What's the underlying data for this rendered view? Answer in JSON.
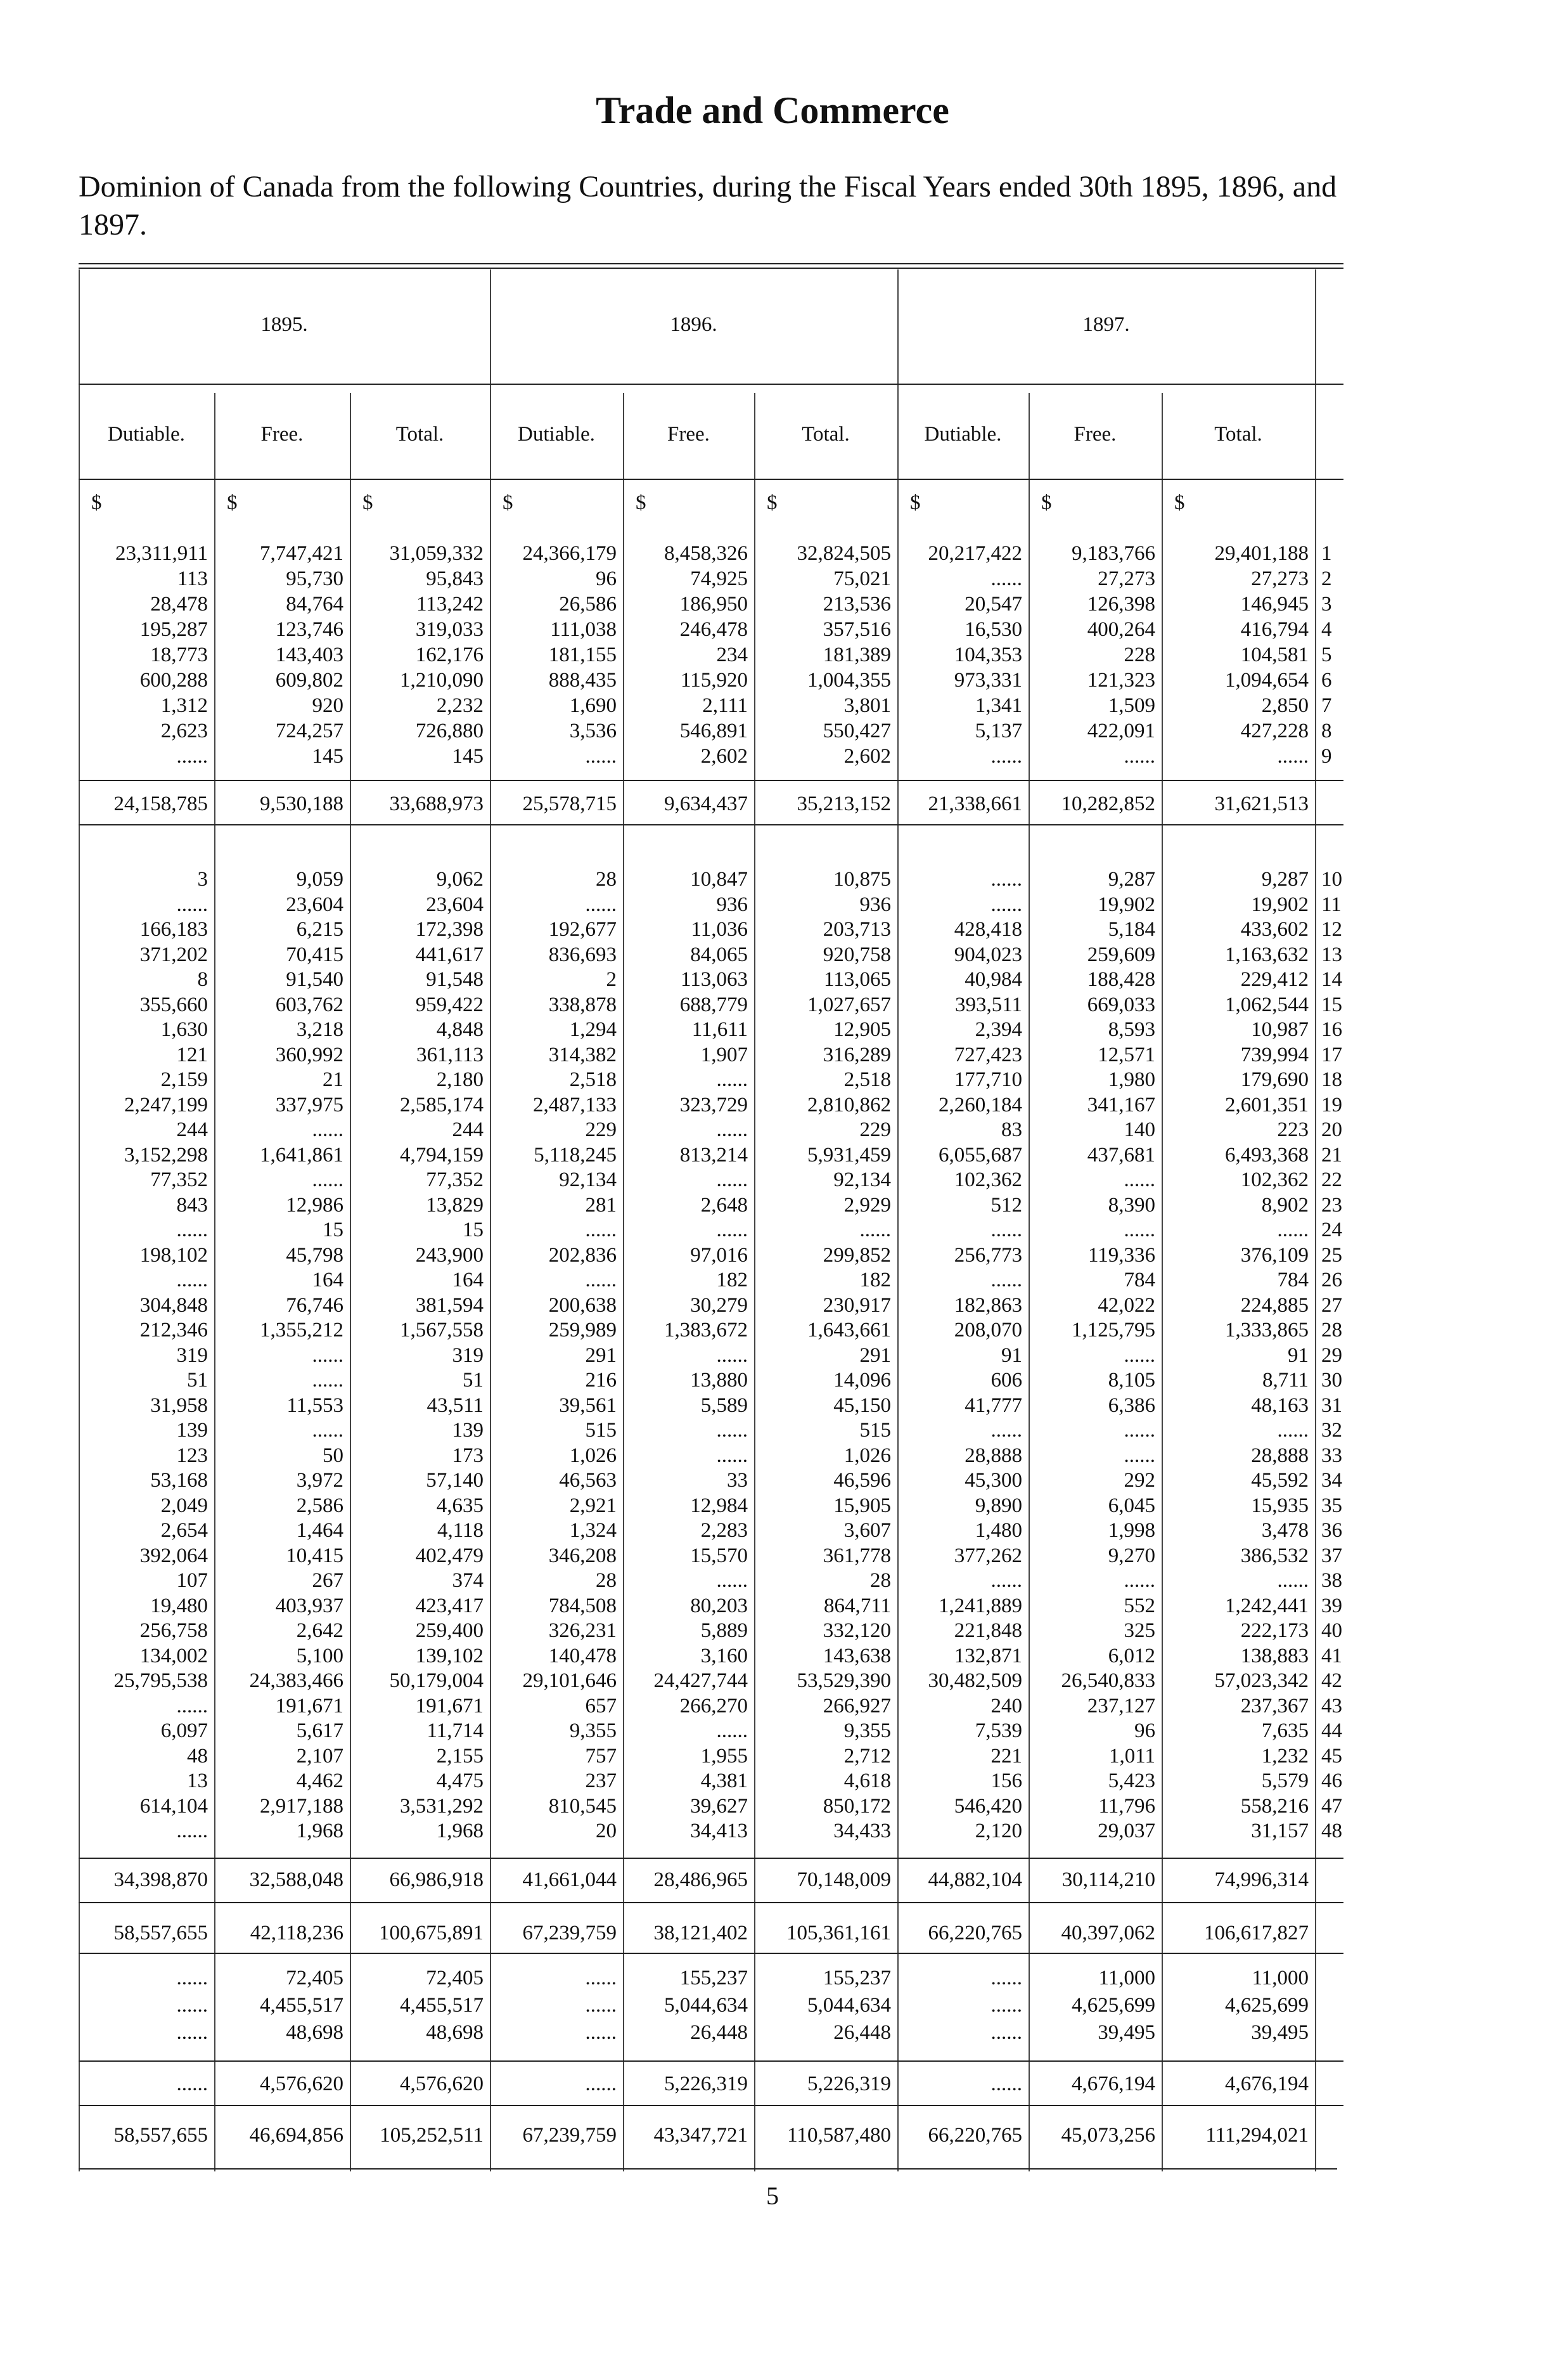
{
  "header": {
    "title": "Trade and Commerce",
    "intro": "Dominion of Canada from the following Countries, during the Fiscal Years ended 30th 1895, 1896, and 1897."
  },
  "table": {
    "years": [
      "1895.",
      "1896.",
      "1897."
    ],
    "columns": [
      "Dutiable.",
      "Free.",
      "Total.",
      "Dutiable.",
      "Free.",
      "Total.",
      "Dutiable.",
      "Free.",
      "Total."
    ],
    "units": [
      "$",
      "$",
      "$",
      "$",
      "$",
      "$",
      "$",
      "$",
      "$"
    ],
    "section_1": {
      "rows": [
        [
          "23,311,911",
          "7,747,421",
          "31,059,332",
          "24,366,179",
          "8,458,326",
          "32,824,505",
          "20,217,422",
          "9,183,766",
          "29,401,188",
          "1"
        ],
        [
          "113",
          "95,730",
          "95,843",
          "96",
          "74,925",
          "75,021",
          "......",
          "27,273",
          "27,273",
          "2"
        ],
        [
          "28,478",
          "84,764",
          "113,242",
          "26,586",
          "186,950",
          "213,536",
          "20,547",
          "126,398",
          "146,945",
          "3"
        ],
        [
          "195,287",
          "123,746",
          "319,033",
          "111,038",
          "246,478",
          "357,516",
          "16,530",
          "400,264",
          "416,794",
          "4"
        ],
        [
          "18,773",
          "143,403",
          "162,176",
          "181,155",
          "234",
          "181,389",
          "104,353",
          "228",
          "104,581",
          "5"
        ],
        [
          "600,288",
          "609,802",
          "1,210,090",
          "888,435",
          "115,920",
          "1,004,355",
          "973,331",
          "121,323",
          "1,094,654",
          "6"
        ],
        [
          "1,312",
          "920",
          "2,232",
          "1,690",
          "2,111",
          "3,801",
          "1,341",
          "1,509",
          "2,850",
          "7"
        ],
        [
          "2,623",
          "724,257",
          "726,880",
          "3,536",
          "546,891",
          "550,427",
          "5,137",
          "422,091",
          "427,228",
          "8"
        ],
        [
          "......",
          "145",
          "145",
          "......",
          "2,602",
          "2,602",
          "......",
          "......",
          "......",
          "9"
        ]
      ],
      "total": [
        "24,158,785",
        "9,530,188",
        "33,688,973",
        "25,578,715",
        "9,634,437",
        "35,213,152",
        "21,338,661",
        "10,282,852",
        "31,621,513"
      ]
    },
    "section_2": {
      "rows": [
        [
          "3",
          "9,059",
          "9,062",
          "28",
          "10,847",
          "10,875",
          "......",
          "9,287",
          "9,287",
          "10"
        ],
        [
          "......",
          "23,604",
          "23,604",
          "......",
          "936",
          "936",
          "......",
          "19,902",
          "19,902",
          "11"
        ],
        [
          "166,183",
          "6,215",
          "172,398",
          "192,677",
          "11,036",
          "203,713",
          "428,418",
          "5,184",
          "433,602",
          "12"
        ],
        [
          "371,202",
          "70,415",
          "441,617",
          "836,693",
          "84,065",
          "920,758",
          "904,023",
          "259,609",
          "1,163,632",
          "13"
        ],
        [
          "8",
          "91,540",
          "91,548",
          "2",
          "113,063",
          "113,065",
          "40,984",
          "188,428",
          "229,412",
          "14"
        ],
        [
          "355,660",
          "603,762",
          "959,422",
          "338,878",
          "688,779",
          "1,027,657",
          "393,511",
          "669,033",
          "1,062,544",
          "15"
        ],
        [
          "1,630",
          "3,218",
          "4,848",
          "1,294",
          "11,611",
          "12,905",
          "2,394",
          "8,593",
          "10,987",
          "16"
        ],
        [
          "121",
          "360,992",
          "361,113",
          "314,382",
          "1,907",
          "316,289",
          "727,423",
          "12,571",
          "739,994",
          "17"
        ],
        [
          "2,159",
          "21",
          "2,180",
          "2,518",
          "......",
          "2,518",
          "177,710",
          "1,980",
          "179,690",
          "18"
        ],
        [
          "2,247,199",
          "337,975",
          "2,585,174",
          "2,487,133",
          "323,729",
          "2,810,862",
          "2,260,184",
          "341,167",
          "2,601,351",
          "19"
        ],
        [
          "244",
          "......",
          "244",
          "229",
          "......",
          "229",
          "83",
          "140",
          "223",
          "20"
        ],
        [
          "3,152,298",
          "1,641,861",
          "4,794,159",
          "5,118,245",
          "813,214",
          "5,931,459",
          "6,055,687",
          "437,681",
          "6,493,368",
          "21"
        ],
        [
          "77,352",
          "......",
          "77,352",
          "92,134",
          "......",
          "92,134",
          "102,362",
          "......",
          "102,362",
          "22"
        ],
        [
          "843",
          "12,986",
          "13,829",
          "281",
          "2,648",
          "2,929",
          "512",
          "8,390",
          "8,902",
          "23"
        ],
        [
          "......",
          "15",
          "15",
          "......",
          "......",
          "......",
          "......",
          "......",
          "......",
          "24"
        ],
        [
          "198,102",
          "45,798",
          "243,900",
          "202,836",
          "97,016",
          "299,852",
          "256,773",
          "119,336",
          "376,109",
          "25"
        ],
        [
          "......",
          "164",
          "164",
          "......",
          "182",
          "182",
          "......",
          "784",
          "784",
          "26"
        ],
        [
          "304,848",
          "76,746",
          "381,594",
          "200,638",
          "30,279",
          "230,917",
          "182,863",
          "42,022",
          "224,885",
          "27"
        ],
        [
          "212,346",
          "1,355,212",
          "1,567,558",
          "259,989",
          "1,383,672",
          "1,643,661",
          "208,070",
          "1,125,795",
          "1,333,865",
          "28"
        ],
        [
          "319",
          "......",
          "319",
          "291",
          "......",
          "291",
          "91",
          "......",
          "91",
          "29"
        ],
        [
          "51",
          "......",
          "51",
          "216",
          "13,880",
          "14,096",
          "606",
          "8,105",
          "8,711",
          "30"
        ],
        [
          "31,958",
          "11,553",
          "43,511",
          "39,561",
          "5,589",
          "45,150",
          "41,777",
          "6,386",
          "48,163",
          "31"
        ],
        [
          "139",
          "......",
          "139",
          "515",
          "......",
          "515",
          "......",
          "......",
          "......",
          "32"
        ],
        [
          "123",
          "50",
          "173",
          "1,026",
          "......",
          "1,026",
          "28,888",
          "......",
          "28,888",
          "33"
        ],
        [
          "53,168",
          "3,972",
          "57,140",
          "46,563",
          "33",
          "46,596",
          "45,300",
          "292",
          "45,592",
          "34"
        ],
        [
          "2,049",
          "2,586",
          "4,635",
          "2,921",
          "12,984",
          "15,905",
          "9,890",
          "6,045",
          "15,935",
          "35"
        ],
        [
          "2,654",
          "1,464",
          "4,118",
          "1,324",
          "2,283",
          "3,607",
          "1,480",
          "1,998",
          "3,478",
          "36"
        ],
        [
          "392,064",
          "10,415",
          "402,479",
          "346,208",
          "15,570",
          "361,778",
          "377,262",
          "9,270",
          "386,532",
          "37"
        ],
        [
          "107",
          "267",
          "374",
          "28",
          "......",
          "28",
          "......",
          "......",
          "......",
          "38"
        ],
        [
          "19,480",
          "403,937",
          "423,417",
          "784,508",
          "80,203",
          "864,711",
          "1,241,889",
          "552",
          "1,242,441",
          "39"
        ],
        [
          "256,758",
          "2,642",
          "259,400",
          "326,231",
          "5,889",
          "332,120",
          "221,848",
          "325",
          "222,173",
          "40"
        ],
        [
          "134,002",
          "5,100",
          "139,102",
          "140,478",
          "3,160",
          "143,638",
          "132,871",
          "6,012",
          "138,883",
          "41"
        ],
        [
          "25,795,538",
          "24,383,466",
          "50,179,004",
          "29,101,646",
          "24,427,744",
          "53,529,390",
          "30,482,509",
          "26,540,833",
          "57,023,342",
          "42"
        ],
        [
          "......",
          "191,671",
          "191,671",
          "657",
          "266,270",
          "266,927",
          "240",
          "237,127",
          "237,367",
          "43"
        ],
        [
          "6,097",
          "5,617",
          "11,714",
          "9,355",
          "......",
          "9,355",
          "7,539",
          "96",
          "7,635",
          "44"
        ],
        [
          "48",
          "2,107",
          "2,155",
          "757",
          "1,955",
          "2,712",
          "221",
          "1,011",
          "1,232",
          "45"
        ],
        [
          "13",
          "4,462",
          "4,475",
          "237",
          "4,381",
          "4,618",
          "156",
          "5,423",
          "5,579",
          "46"
        ],
        [
          "614,104",
          "2,917,188",
          "3,531,292",
          "810,545",
          "39,627",
          "850,172",
          "546,420",
          "11,796",
          "558,216",
          "47"
        ],
        [
          "......",
          "1,968",
          "1,968",
          "20",
          "34,413",
          "34,433",
          "2,120",
          "29,037",
          "31,157",
          "48"
        ]
      ],
      "total": [
        "34,398,870",
        "32,588,048",
        "66,986,918",
        "41,661,044",
        "28,486,965",
        "70,148,009",
        "44,882,104",
        "30,114,210",
        "74,996,314"
      ]
    },
    "grand_total": [
      "58,557,655",
      "42,118,236",
      "100,675,891",
      "67,239,759",
      "38,121,402",
      "105,361,161",
      "66,220,765",
      "40,397,062",
      "106,617,827"
    ],
    "section_3": {
      "rows": [
        [
          "......",
          "72,405",
          "72,405",
          "......",
          "155,237",
          "155,237",
          "......",
          "11,000",
          "11,000"
        ],
        [
          "......",
          "4,455,517",
          "4,455,517",
          "......",
          "5,044,634",
          "5,044,634",
          "......",
          "4,625,699",
          "4,625,699"
        ],
        [
          "......",
          "48,698",
          "48,698",
          "......",
          "26,448",
          "26,448",
          "......",
          "39,495",
          "39,495"
        ]
      ],
      "total": [
        "......",
        "4,576,620",
        "4,576,620",
        "......",
        "5,226,319",
        "5,226,319",
        "......",
        "4,676,194",
        "4,676,194"
      ]
    },
    "final_total": [
      "58,557,655",
      "46,694,856",
      "105,252,511",
      "67,239,759",
      "43,347,721",
      "110,587,480",
      "66,220,765",
      "45,073,256",
      "111,294,021"
    ]
  },
  "page_number": "5"
}
